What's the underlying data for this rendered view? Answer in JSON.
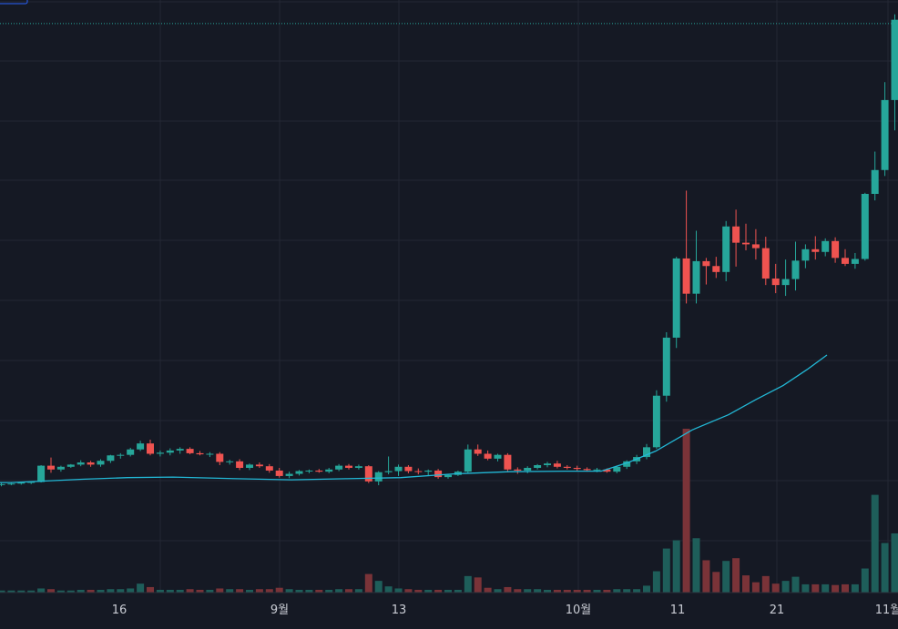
{
  "chart_data": {
    "type": "candlestick",
    "x_ticks": [
      "16",
      "9월",
      "13",
      "10월",
      "11",
      "21",
      "11월"
    ],
    "y_range": [
      0,
      100
    ],
    "grid": true,
    "colors": {
      "background": "#151924",
      "grid": "#232734",
      "up": "#26a69a",
      "down": "#ef5350",
      "volume_up": "#1e5e5a",
      "volume_down": "#7a3338",
      "moving_average": "#22b8d6",
      "price_line": "#26a69a",
      "axis_text": "#c9ccd4"
    },
    "price_line": 96.5,
    "candles": [
      [
        11.5,
        11.8,
        11.2,
        11.6
      ],
      [
        11.6,
        11.9,
        11.4,
        11.7
      ],
      [
        11.7,
        12.0,
        11.5,
        11.9
      ],
      [
        11.9,
        12.1,
        11.6,
        12.0
      ],
      [
        12.0,
        15.1,
        11.9,
        15.0
      ],
      [
        15.0,
        16.5,
        13.7,
        14.3
      ],
      [
        14.3,
        15.0,
        13.9,
        14.8
      ],
      [
        14.8,
        15.3,
        14.6,
        15.2
      ],
      [
        15.2,
        16.0,
        14.9,
        15.6
      ],
      [
        15.6,
        15.9,
        14.8,
        15.2
      ],
      [
        15.2,
        16.2,
        14.8,
        15.9
      ],
      [
        15.9,
        17.0,
        15.5,
        16.9
      ],
      [
        16.9,
        17.3,
        16.3,
        17.0
      ],
      [
        17.0,
        18.3,
        16.7,
        18.0
      ],
      [
        18.0,
        19.6,
        17.7,
        19.1
      ],
      [
        19.1,
        19.8,
        16.9,
        17.2
      ],
      [
        17.2,
        17.8,
        16.7,
        17.4
      ],
      [
        17.4,
        18.2,
        16.9,
        17.8
      ],
      [
        17.8,
        18.4,
        17.2,
        18.1
      ],
      [
        18.1,
        18.4,
        17.1,
        17.3
      ],
      [
        17.3,
        17.7,
        16.9,
        17.1
      ],
      [
        17.1,
        17.5,
        16.6,
        17.2
      ],
      [
        17.2,
        17.5,
        15.1,
        15.7
      ],
      [
        15.7,
        16.1,
        15.2,
        15.8
      ],
      [
        15.8,
        16.2,
        14.2,
        14.6
      ],
      [
        14.6,
        15.4,
        14.2,
        15.2
      ],
      [
        15.2,
        15.6,
        14.6,
        14.9
      ],
      [
        14.9,
        15.3,
        13.7,
        14.1
      ],
      [
        14.1,
        14.6,
        12.8,
        13.1
      ],
      [
        13.1,
        13.9,
        12.7,
        13.5
      ],
      [
        13.5,
        14.2,
        13.2,
        14.0
      ],
      [
        14.0,
        14.3,
        13.6,
        14.1
      ],
      [
        14.1,
        14.4,
        13.7,
        13.9
      ],
      [
        13.9,
        14.6,
        13.6,
        14.3
      ],
      [
        14.3,
        15.3,
        14.0,
        15.0
      ],
      [
        15.0,
        15.3,
        14.3,
        14.6
      ],
      [
        14.6,
        15.2,
        14.3,
        14.9
      ],
      [
        14.9,
        15.1,
        11.8,
        12.1
      ],
      [
        12.1,
        14.0,
        11.4,
        13.8
      ],
      [
        13.8,
        16.7,
        13.4,
        14.0
      ],
      [
        14.0,
        15.2,
        13.1,
        14.8
      ],
      [
        14.8,
        15.1,
        13.6,
        14.0
      ],
      [
        14.0,
        14.5,
        13.4,
        13.9
      ],
      [
        13.9,
        14.3,
        13.2,
        14.1
      ],
      [
        14.1,
        14.4,
        12.6,
        12.9
      ],
      [
        12.9,
        13.5,
        12.6,
        13.3
      ],
      [
        13.3,
        14.1,
        13.1,
        13.9
      ],
      [
        13.9,
        18.9,
        13.6,
        18.0
      ],
      [
        18.0,
        18.9,
        16.8,
        17.2
      ],
      [
        17.2,
        17.8,
        16.0,
        16.3
      ],
      [
        16.3,
        17.2,
        15.8,
        17.0
      ],
      [
        17.0,
        17.3,
        14.0,
        14.3
      ],
      [
        14.3,
        14.7,
        13.5,
        14.1
      ],
      [
        14.1,
        14.9,
        13.6,
        14.6
      ],
      [
        14.6,
        15.3,
        14.3,
        15.1
      ],
      [
        15.1,
        15.7,
        14.7,
        15.4
      ],
      [
        15.4,
        15.9,
        14.5,
        14.8
      ],
      [
        14.8,
        15.1,
        14.3,
        14.6
      ],
      [
        14.6,
        15.0,
        14.1,
        14.4
      ],
      [
        14.4,
        14.7,
        13.9,
        14.2
      ],
      [
        14.2,
        14.6,
        13.8,
        14.3
      ],
      [
        14.3,
        14.5,
        13.7,
        13.9
      ],
      [
        13.9,
        15.0,
        13.6,
        14.8
      ],
      [
        14.8,
        16.0,
        14.4,
        15.8
      ],
      [
        15.8,
        17.0,
        15.3,
        16.6
      ],
      [
        16.6,
        19.0,
        16.2,
        18.4
      ],
      [
        18.4,
        28.9,
        18.1,
        27.9
      ],
      [
        27.9,
        39.6,
        26.8,
        38.6
      ],
      [
        38.6,
        53.5,
        36.7,
        53.2
      ],
      [
        53.2,
        65.7,
        44.9,
        46.7
      ],
      [
        46.7,
        58.3,
        44.9,
        52.7
      ],
      [
        52.7,
        53.3,
        48.4,
        51.8
      ],
      [
        51.8,
        53.5,
        49.6,
        50.7
      ],
      [
        50.7,
        60.1,
        49.0,
        59.1
      ],
      [
        59.1,
        62.2,
        51.7,
        56.1
      ],
      [
        56.1,
        59.6,
        54.7,
        55.8
      ],
      [
        55.8,
        58.6,
        53.0,
        55.1
      ],
      [
        55.1,
        57.2,
        48.3,
        49.5
      ],
      [
        49.5,
        52.2,
        46.8,
        48.3
      ],
      [
        48.3,
        53.0,
        46.3,
        49.4
      ],
      [
        49.4,
        56.3,
        47.3,
        52.8
      ],
      [
        52.8,
        55.8,
        51.4,
        54.9
      ],
      [
        54.9,
        57.3,
        53.0,
        54.4
      ],
      [
        54.4,
        56.9,
        53.6,
        56.4
      ],
      [
        56.4,
        57.1,
        52.4,
        53.3
      ],
      [
        53.3,
        54.9,
        51.8,
        52.2
      ],
      [
        52.2,
        54.2,
        51.3,
        53.1
      ],
      [
        53.1,
        65.3,
        52.8,
        65.1
      ],
      [
        65.1,
        72.9,
        63.9,
        69.5
      ],
      [
        69.5,
        85.7,
        68.4,
        82.4
      ],
      [
        82.4,
        98.2,
        76.8,
        97.2
      ]
    ],
    "volume": [
      0.3,
      0.3,
      0.3,
      0.3,
      0.6,
      0.5,
      0.3,
      0.3,
      0.4,
      0.4,
      0.4,
      0.5,
      0.5,
      0.6,
      1.3,
      0.8,
      0.4,
      0.4,
      0.4,
      0.5,
      0.4,
      0.4,
      0.6,
      0.5,
      0.5,
      0.4,
      0.5,
      0.5,
      0.7,
      0.5,
      0.4,
      0.4,
      0.4,
      0.4,
      0.5,
      0.5,
      0.5,
      2.7,
      1.7,
      0.9,
      0.6,
      0.5,
      0.4,
      0.4,
      0.4,
      0.4,
      0.4,
      2.4,
      2.2,
      0.7,
      0.5,
      0.8,
      0.5,
      0.5,
      0.5,
      0.4,
      0.4,
      0.4,
      0.4,
      0.4,
      0.4,
      0.4,
      0.5,
      0.5,
      0.5,
      1.0,
      3.1,
      6.4,
      7.6,
      23.8,
      7.9,
      4.7,
      3.0,
      4.6,
      5.0,
      2.5,
      1.5,
      2.4,
      1.3,
      1.7,
      2.3,
      1.2,
      1.2,
      1.2,
      1.1,
      1.2,
      1.2,
      3.5,
      14.2,
      7.2,
      8.6
    ],
    "ma_points": [
      [
        -2,
        11.9
      ],
      [
        12,
        11.9
      ],
      [
        40,
        12.1
      ],
      [
        90,
        12.5
      ],
      [
        140,
        12.8
      ],
      [
        190,
        12.9
      ],
      [
        260,
        12.6
      ],
      [
        320,
        12.4
      ],
      [
        380,
        12.6
      ],
      [
        440,
        12.8
      ],
      [
        500,
        13.5
      ],
      [
        560,
        13.9
      ],
      [
        620,
        14.0
      ],
      [
        660,
        14.0
      ],
      [
        690,
        15.6
      ],
      [
        720,
        17.7
      ],
      [
        760,
        21.6
      ],
      [
        800,
        24.4
      ],
      [
        830,
        27.2
      ],
      [
        860,
        29.8
      ],
      [
        886,
        32.7
      ],
      [
        908,
        35.4
      ]
    ]
  }
}
